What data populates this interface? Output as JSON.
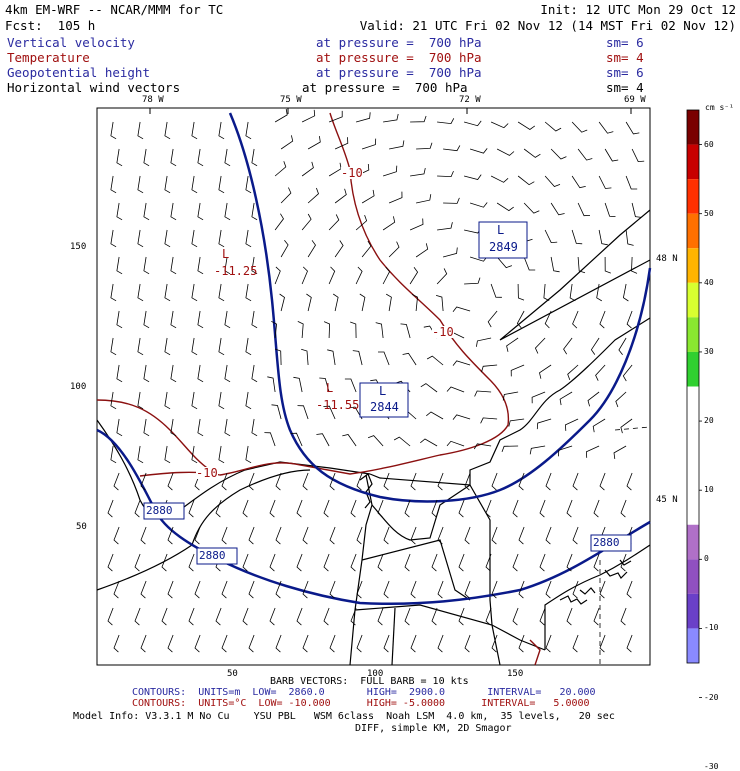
{
  "header": {
    "model_title": "4km EM-WRF -- NCAR/MMM for TC",
    "init": "Init: 12 UTC Mon 29 Oct 12",
    "forecast": "Fcst:  105 h",
    "valid": "Valid: 21 UTC Fri 02 Nov 12 (14 MST Fri 02 Nov 12)"
  },
  "fields": [
    {
      "name": "Vertical velocity",
      "level": "at pressure =  700 hPa",
      "sm": "sm= 6",
      "color": "#2a2aa0"
    },
    {
      "name": "Temperature",
      "level": "at pressure =  700 hPa",
      "sm": "sm= 4",
      "color": "#a01010"
    },
    {
      "name": "Geopotential height",
      "level": "at pressure =  700 hPa",
      "sm": "sm= 6",
      "color": "#2a2aa0"
    },
    {
      "name": "Horizontal wind vectors",
      "level": "at pressure =  700 hPa",
      "sm": "sm= 4",
      "color": "#000000"
    }
  ],
  "map": {
    "lon_labels": [
      "78 W",
      "75 W",
      "72 W",
      "69 W"
    ],
    "lat_labels": [
      "48 N",
      "45 N"
    ],
    "grid_y_labels": [
      "150",
      "100",
      "50"
    ],
    "grid_x_labels": [
      "50",
      "100",
      "150"
    ],
    "height_contours": {
      "labels": [
        "2880",
        "2880",
        "2880"
      ],
      "lows": [
        {
          "symbol": "L",
          "value": "2849"
        },
        {
          "symbol": "L",
          "value": "2844"
        }
      ]
    },
    "temperature_contours": {
      "labels": [
        "-10",
        "-10",
        "-10"
      ],
      "lows": [
        {
          "symbol": "L",
          "value": "-11.25"
        },
        {
          "symbol": "L",
          "value": "-11.55"
        }
      ]
    }
  },
  "colorbar": {
    "units": "cm s⁻¹",
    "ticks": [
      "60",
      "50",
      "40",
      "30",
      "20",
      "10",
      "0",
      "-10",
      "-20",
      "-30"
    ],
    "colors": [
      "#7a0000",
      "#c80000",
      "#ff3000",
      "#ff7000",
      "#ffb400",
      "#d8ff30",
      "#8ae830",
      "#30d030",
      "#ffffff",
      "#ffffff",
      "#ffffff",
      "#ffffff",
      "#b070c8",
      "#9050c0",
      "#6a40c8",
      "#8a8aff"
    ]
  },
  "footer": {
    "barb": "BARB VECTORS:  FULL BARB = 10 kts",
    "contours_height": "CONTOURS:  UNITS=m  LOW=  2860.0       HIGH=  2900.0       INTERVAL=   20.000",
    "contours_temp": "CONTOURS:  UNITS=°C  LOW= -10.000      HIGH= -5.0000      INTERVAL=   5.0000",
    "model_info": "Model Info: V3.3.1 M No Cu    YSU PBL   WSM 6class  Noah LSM  4.0 km,  35 levels,   20 sec",
    "diff": "DIFF, simple KM, 2D Smagor"
  }
}
